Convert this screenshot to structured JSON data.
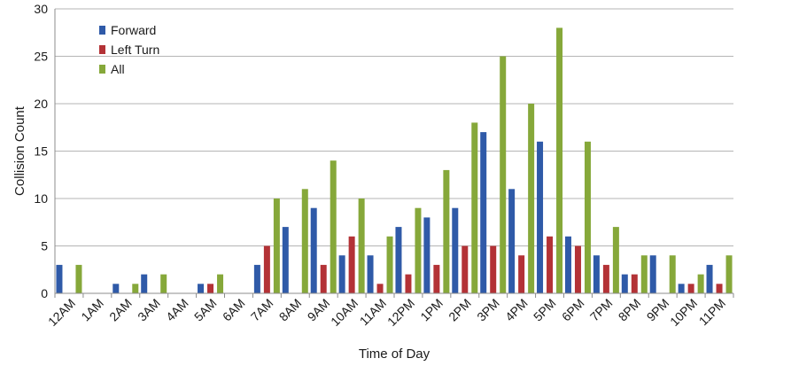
{
  "chart_data": {
    "type": "bar",
    "xlabel": "Time of Day",
    "ylabel": "Collision Count",
    "ylim": [
      0,
      30
    ],
    "yticks": [
      0,
      5,
      10,
      15,
      20,
      25,
      30
    ],
    "grid": true,
    "legend_position": "top-left",
    "categories": [
      "12AM",
      "1AM",
      "2AM",
      "3AM",
      "4AM",
      "5AM",
      "6AM",
      "7AM",
      "8AM",
      "9AM",
      "10AM",
      "11AM",
      "12PM",
      "1PM",
      "2PM",
      "3PM",
      "4PM",
      "5PM",
      "6PM",
      "7PM",
      "8PM",
      "9PM",
      "10PM",
      "11PM"
    ],
    "series": [
      {
        "name": "Forward",
        "color": "#2f5aa8",
        "values": [
          3,
          0,
          1,
          2,
          0,
          1,
          0,
          3,
          7,
          9,
          4,
          4,
          7,
          8,
          9,
          17,
          11,
          16,
          6,
          4,
          2,
          4,
          1,
          3
        ]
      },
      {
        "name": "Left Turn",
        "color": "#b33236",
        "values": [
          0,
          0,
          0,
          0,
          0,
          1,
          0,
          5,
          0,
          3,
          6,
          1,
          2,
          3,
          5,
          5,
          4,
          6,
          5,
          3,
          2,
          0,
          1,
          1
        ]
      },
      {
        "name": "All",
        "color": "#86a83a",
        "values": [
          3,
          0,
          1,
          2,
          0,
          2,
          0,
          10,
          11,
          14,
          10,
          6,
          9,
          13,
          18,
          25,
          20,
          28,
          16,
          7,
          4,
          4,
          2,
          4
        ]
      }
    ]
  }
}
